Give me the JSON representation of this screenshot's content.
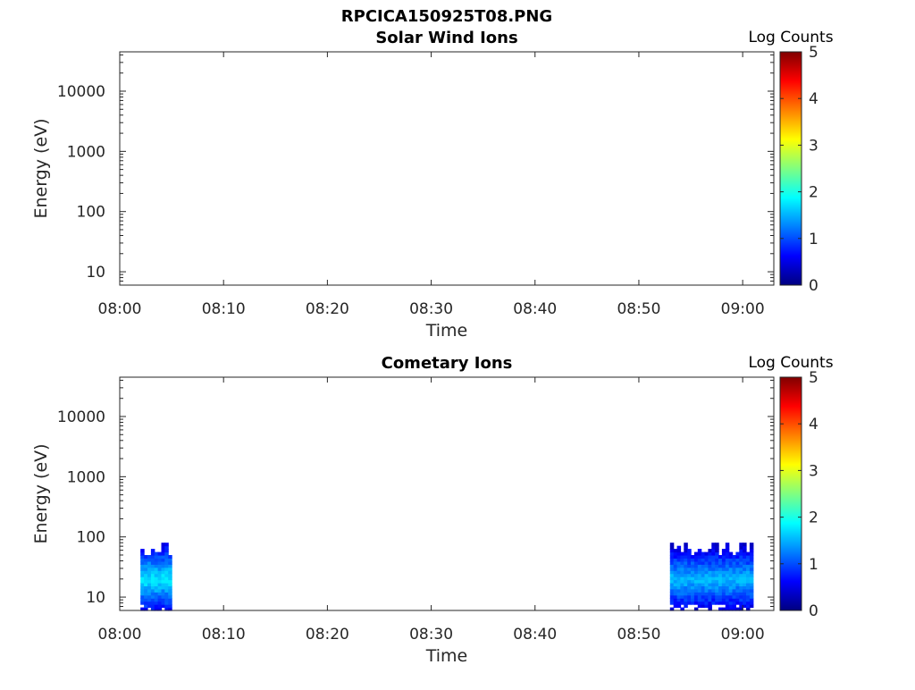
{
  "figure": {
    "file_title": "RPCICA150925T08.PNG"
  },
  "chart_data": [
    {
      "type": "heatmap",
      "title": "Solar Wind Ions",
      "xlabel": "Time",
      "ylabel": "Energy (eV)",
      "x_ticks": [
        "08:00",
        "08:10",
        "08:20",
        "08:30",
        "08:40",
        "08:50",
        "09:00"
      ],
      "xlim": [
        "08:00",
        "09:03"
      ],
      "y_scale": "log",
      "y_ticks": [
        10,
        100,
        1000,
        10000
      ],
      "y_tick_labels": [
        "10",
        "100",
        "1000",
        "10000"
      ],
      "ylim": [
        6,
        45000
      ],
      "colorbar": {
        "label": "Log Counts",
        "range": [
          0,
          5
        ],
        "ticks": [
          "0",
          "1",
          "2",
          "3",
          "4",
          "5"
        ],
        "colormap": "jet"
      },
      "blocks": []
    },
    {
      "type": "heatmap",
      "title": "Cometary Ions",
      "xlabel": "Time",
      "ylabel": "Energy (eV)",
      "x_ticks": [
        "08:00",
        "08:10",
        "08:20",
        "08:30",
        "08:40",
        "08:50",
        "09:00"
      ],
      "xlim": [
        "08:00",
        "09:03"
      ],
      "y_scale": "log",
      "y_ticks": [
        10,
        100,
        1000,
        10000
      ],
      "y_tick_labels": [
        "10",
        "100",
        "1000",
        "10000"
      ],
      "ylim": [
        6,
        45000
      ],
      "colorbar": {
        "label": "Log Counts",
        "range": [
          0,
          5
        ],
        "ticks": [
          "0",
          "1",
          "2",
          "3",
          "4",
          "5"
        ],
        "colormap": "jet"
      },
      "blocks": [
        {
          "start": "08:02",
          "end": "08:05",
          "e_min": 6,
          "e_max": 80,
          "log_counts_range": [
            0.3,
            1.8
          ]
        },
        {
          "start": "08:53",
          "end": "09:01",
          "e_min": 6,
          "e_max": 80,
          "log_counts_range": [
            0.3,
            1.6
          ]
        }
      ]
    }
  ]
}
